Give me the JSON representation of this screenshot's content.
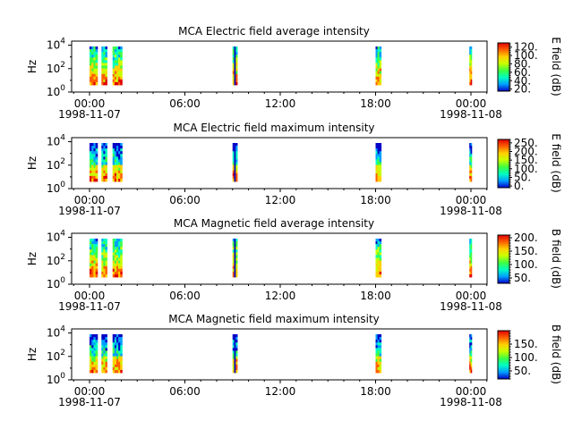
{
  "chart_data": [
    {
      "type": "heatmap",
      "title": "MCA  Electric field average intensity",
      "ylabel": "Hz",
      "yscale": "log",
      "yticks": [
        "10^0",
        "10^2",
        "10^4"
      ],
      "xticks": [
        {
          "time": "00:00",
          "date": "1998-11-07"
        },
        {
          "time": "06:00",
          "date": ""
        },
        {
          "time": "12:00",
          "date": ""
        },
        {
          "time": "18:00",
          "date": ""
        },
        {
          "time": "00:00",
          "date": "1998-11-08"
        }
      ],
      "colorbar": {
        "label": "E field (dB)",
        "min": 15,
        "max": 130,
        "ticks": [
          20,
          40,
          60,
          80,
          100,
          120
        ],
        "ticklabels": [
          "20.",
          "40.",
          "60.",
          "80.",
          "100.",
          "120."
        ]
      },
      "segments_hours": [
        [
          0.0,
          0.5
        ],
        [
          0.75,
          1.1
        ],
        [
          1.45,
          2.05
        ],
        [
          9.0,
          9.3
        ],
        [
          18.0,
          18.35
        ],
        [
          23.9,
          24.05
        ]
      ],
      "colors": [
        "#0000c8",
        "#00a0ff",
        "#00ffc0",
        "#40ff40",
        "#c8ff00",
        "#ffd000",
        "#ff6000",
        "#e00000"
      ]
    },
    {
      "type": "heatmap",
      "title": "MCA  Electric field maximum intensity",
      "ylabel": "Hz",
      "yscale": "log",
      "yticks": [
        "10^0",
        "10^2",
        "10^4"
      ],
      "xticks": [
        {
          "time": "00:00",
          "date": "1998-11-07"
        },
        {
          "time": "06:00",
          "date": ""
        },
        {
          "time": "12:00",
          "date": ""
        },
        {
          "time": "18:00",
          "date": ""
        },
        {
          "time": "00:00",
          "date": "1998-11-08"
        }
      ],
      "colorbar": {
        "label": "E field (dB)",
        "min": -10,
        "max": 270,
        "ticks": [
          0,
          50,
          100,
          150,
          200,
          250
        ],
        "ticklabels": [
          "0.",
          "50.",
          "100.",
          "150.",
          "200.",
          "250."
        ]
      },
      "segments_hours": [
        [
          0.0,
          0.5
        ],
        [
          0.75,
          1.1
        ],
        [
          1.45,
          2.05
        ],
        [
          9.0,
          9.3
        ],
        [
          18.0,
          18.35
        ],
        [
          23.9,
          24.05
        ]
      ],
      "colors": [
        "#0000c8",
        "#00a0ff",
        "#00ffc0",
        "#40ff40",
        "#c8ff00",
        "#ffd000",
        "#ff6000",
        "#e00000"
      ]
    },
    {
      "type": "heatmap",
      "title": "MCA  Magnetic field average intensity",
      "ylabel": "Hz",
      "yscale": "log",
      "yticks": [
        "10^0",
        "10^2",
        "10^4"
      ],
      "xticks": [
        {
          "time": "00:00",
          "date": "1998-11-07"
        },
        {
          "time": "06:00",
          "date": ""
        },
        {
          "time": "12:00",
          "date": ""
        },
        {
          "time": "18:00",
          "date": ""
        },
        {
          "time": "00:00",
          "date": "1998-11-08"
        }
      ],
      "colorbar": {
        "label": "B field (dB)",
        "min": 30,
        "max": 210,
        "ticks": [
          50,
          100,
          150,
          200
        ],
        "ticklabels": [
          "50.",
          "100.",
          "150.",
          "200."
        ]
      },
      "segments_hours": [
        [
          0.0,
          0.5
        ],
        [
          0.75,
          1.1
        ],
        [
          1.45,
          2.05
        ],
        [
          9.0,
          9.3
        ],
        [
          18.0,
          18.35
        ],
        [
          23.9,
          24.05
        ]
      ],
      "colors": [
        "#0000c8",
        "#00a0ff",
        "#00ffc0",
        "#40ff40",
        "#c8ff00",
        "#ffd000",
        "#ff6000",
        "#e00000"
      ]
    },
    {
      "type": "heatmap",
      "title": "MCA  Magnetic field maximum intensity",
      "ylabel": "Hz",
      "yscale": "log",
      "yticks": [
        "10^0",
        "10^2",
        "10^4"
      ],
      "xticks": [
        {
          "time": "00:00",
          "date": "1998-11-07"
        },
        {
          "time": "06:00",
          "date": ""
        },
        {
          "time": "12:00",
          "date": ""
        },
        {
          "time": "18:00",
          "date": ""
        },
        {
          "time": "00:00",
          "date": "1998-11-08"
        }
      ],
      "colorbar": {
        "label": "B field (dB)",
        "min": 20,
        "max": 200,
        "ticks": [
          50,
          100,
          150
        ],
        "ticklabels": [
          "50.",
          "100.",
          "150."
        ]
      },
      "segments_hours": [
        [
          0.0,
          0.5
        ],
        [
          0.75,
          1.1
        ],
        [
          1.45,
          2.05
        ],
        [
          9.0,
          9.3
        ],
        [
          18.0,
          18.35
        ],
        [
          23.9,
          24.05
        ]
      ],
      "colors": [
        "#0000c8",
        "#00a0ff",
        "#00ffc0",
        "#40ff40",
        "#c8ff00",
        "#ffd000",
        "#ff6000",
        "#e00000"
      ]
    }
  ]
}
